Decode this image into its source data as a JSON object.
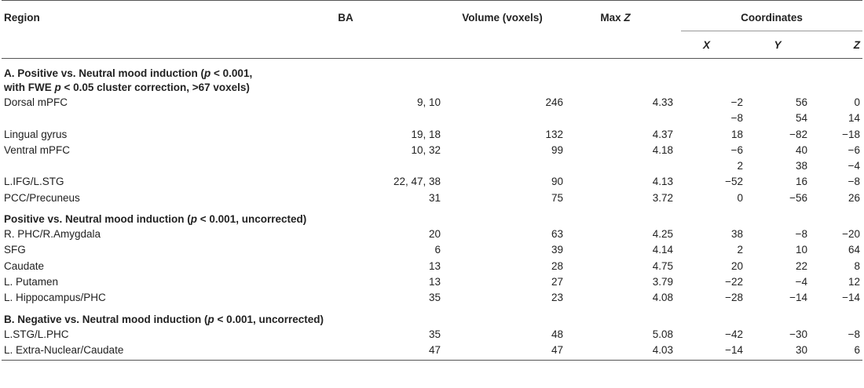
{
  "headers": {
    "region": "Region",
    "ba": "BA",
    "volume": "Volume (voxels)",
    "maxz_prefix": "Max ",
    "maxz_z": "Z",
    "coordinates": "Coordinates",
    "x": "X",
    "y": "Y",
    "z": "Z"
  },
  "sections": [
    {
      "title_line1_a": "A. Positive vs. Neutral mood induction (",
      "title_line1_p": "p",
      "title_line1_b": " < 0.001,",
      "title_line2_a": "with FWE ",
      "title_line2_p": "p",
      "title_line2_b": " < 0.05 cluster correction, >67 voxels)",
      "rows": [
        {
          "region": "Dorsal mPFC",
          "ba": "9, 10",
          "volume": "246",
          "maxz": "4.33",
          "x": "−2",
          "y": "56",
          "z": "0"
        },
        {
          "region": "",
          "ba": "",
          "volume": "",
          "maxz": "",
          "x": "−8",
          "y": "54",
          "z": "14"
        },
        {
          "region": "Lingual gyrus",
          "ba": "19, 18",
          "volume": "132",
          "maxz": "4.37",
          "x": "18",
          "y": "−82",
          "z": "−18"
        },
        {
          "region": "Ventral mPFC",
          "ba": "10, 32",
          "volume": "99",
          "maxz": "4.18",
          "x": "−6",
          "y": "40",
          "z": "−6"
        },
        {
          "region": "",
          "ba": "",
          "volume": "",
          "maxz": "",
          "x": "2",
          "y": "38",
          "z": "−4"
        },
        {
          "region": "L.IFG/L.STG",
          "ba": "22, 47, 38",
          "volume": "90",
          "maxz": "4.13",
          "x": "−52",
          "y": "16",
          "z": "−8"
        },
        {
          "region": "PCC/Precuneus",
          "ba": "31",
          "volume": "75",
          "maxz": "3.72",
          "x": "0",
          "y": "−56",
          "z": "26"
        }
      ]
    },
    {
      "title_a": "Positive vs. Neutral mood induction (",
      "title_p": "p",
      "title_b": " < 0.001, uncorrected)",
      "rows": [
        {
          "region": "R. PHC/R.Amygdala",
          "ba": "20",
          "volume": "63",
          "maxz": "4.25",
          "x": "38",
          "y": "−8",
          "z": "−20"
        },
        {
          "region": "SFG",
          "ba": "6",
          "volume": "39",
          "maxz": "4.14",
          "x": "2",
          "y": "10",
          "z": "64"
        },
        {
          "region": "Caudate",
          "ba": "13",
          "volume": "28",
          "maxz": "4.75",
          "x": "20",
          "y": "22",
          "z": "8"
        },
        {
          "region": "L. Putamen",
          "ba": "13",
          "volume": "27",
          "maxz": "3.79",
          "x": "−22",
          "y": "−4",
          "z": "12"
        },
        {
          "region": "L. Hippocampus/PHC",
          "ba": "35",
          "volume": "23",
          "maxz": "4.08",
          "x": "−28",
          "y": "−14",
          "z": "−14"
        }
      ]
    },
    {
      "title_a": "B. Negative vs. Neutral mood induction (",
      "title_p": "p",
      "title_b": " < 0.001, uncorrected)",
      "rows": [
        {
          "region": "L.STG/L.PHC",
          "ba": "35",
          "volume": "48",
          "maxz": "5.08",
          "x": "−42",
          "y": "−30",
          "z": "−8"
        },
        {
          "region": "L. Extra-Nuclear/Caudate",
          "ba": "47",
          "volume": "47",
          "maxz": "4.03",
          "x": "−14",
          "y": "30",
          "z": "6"
        }
      ]
    }
  ]
}
